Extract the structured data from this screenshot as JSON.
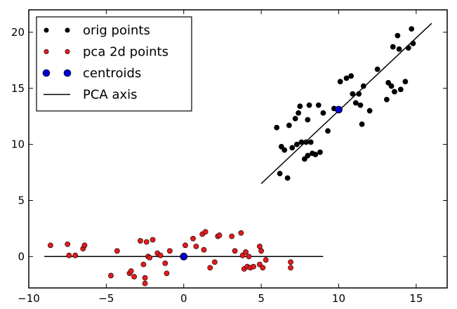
{
  "chart_data": {
    "type": "scatter",
    "title": "",
    "xlabel": "",
    "ylabel": "",
    "xlim": [
      -10,
      17
    ],
    "ylim": [
      -2.8,
      22
    ],
    "x_ticks": [
      -10,
      -5,
      0,
      5,
      10,
      15
    ],
    "y_ticks": [
      0,
      5,
      10,
      15,
      20
    ],
    "grid": false,
    "legend_position": "top-left",
    "series": [
      {
        "name": "orig points",
        "kind": "points",
        "color": "#000000",
        "points": [
          [
            6.0,
            11.5
          ],
          [
            6.3,
            9.8
          ],
          [
            6.5,
            9.5
          ],
          [
            6.7,
            7.0
          ],
          [
            6.8,
            11.7
          ],
          [
            6.2,
            7.4
          ],
          [
            7.0,
            9.7
          ],
          [
            7.2,
            12.3
          ],
          [
            7.3,
            10.0
          ],
          [
            7.4,
            12.8
          ],
          [
            7.5,
            13.4
          ],
          [
            7.6,
            10.2
          ],
          [
            7.8,
            8.7
          ],
          [
            7.9,
            10.2
          ],
          [
            8.0,
            12.2
          ],
          [
            8.0,
            9.0
          ],
          [
            8.1,
            13.5
          ],
          [
            8.2,
            10.2
          ],
          [
            8.3,
            9.2
          ],
          [
            8.5,
            9.1
          ],
          [
            8.7,
            13.5
          ],
          [
            8.8,
            9.3
          ],
          [
            9.0,
            12.8
          ],
          [
            9.3,
            11.2
          ],
          [
            9.7,
            13.2
          ],
          [
            10.1,
            15.6
          ],
          [
            10.5,
            15.9
          ],
          [
            10.8,
            16.1
          ],
          [
            10.9,
            14.5
          ],
          [
            11.1,
            13.7
          ],
          [
            11.3,
            14.5
          ],
          [
            11.5,
            11.8
          ],
          [
            11.6,
            15.2
          ],
          [
            11.4,
            13.5
          ],
          [
            12.0,
            13.0
          ],
          [
            12.5,
            16.7
          ],
          [
            13.1,
            14.0
          ],
          [
            13.2,
            15.5
          ],
          [
            13.5,
            18.7
          ],
          [
            13.6,
            14.7
          ],
          [
            13.8,
            19.7
          ],
          [
            14.0,
            14.9
          ],
          [
            14.3,
            15.6
          ],
          [
            14.5,
            18.6
          ],
          [
            14.7,
            20.3
          ],
          [
            14.8,
            19.0
          ],
          [
            13.4,
            15.2
          ],
          [
            13.9,
            18.5
          ]
        ]
      },
      {
        "name": "pca 2d points",
        "kind": "points",
        "color": "#e41a1c",
        "points": [
          [
            -8.6,
            1.0
          ],
          [
            -7.5,
            1.1
          ],
          [
            -7.4,
            0.1
          ],
          [
            -7.0,
            0.1
          ],
          [
            -6.5,
            0.7
          ],
          [
            -6.4,
            1.0
          ],
          [
            -4.7,
            -1.7
          ],
          [
            -4.3,
            0.5
          ],
          [
            -3.5,
            -1.5
          ],
          [
            -3.4,
            -1.3
          ],
          [
            -3.2,
            -1.8
          ],
          [
            -2.8,
            1.4
          ],
          [
            -2.6,
            -0.7
          ],
          [
            -2.5,
            -1.9
          ],
          [
            -2.5,
            -2.4
          ],
          [
            -2.4,
            1.3
          ],
          [
            -2.3,
            0.0
          ],
          [
            -2.2,
            -0.1
          ],
          [
            -2.0,
            1.5
          ],
          [
            -1.7,
            0.3
          ],
          [
            -1.5,
            0.1
          ],
          [
            -1.2,
            -0.6
          ],
          [
            -1.1,
            -1.5
          ],
          [
            -0.9,
            0.5
          ],
          [
            0.1,
            1.0
          ],
          [
            0.6,
            1.6
          ],
          [
            0.8,
            0.9
          ],
          [
            1.2,
            2.0
          ],
          [
            1.3,
            0.6
          ],
          [
            1.4,
            2.2
          ],
          [
            1.7,
            -1.0
          ],
          [
            2.0,
            -0.5
          ],
          [
            2.2,
            1.8
          ],
          [
            2.3,
            1.9
          ],
          [
            3.1,
            1.8
          ],
          [
            3.3,
            0.5
          ],
          [
            3.7,
            2.1
          ],
          [
            3.8,
            0.1
          ],
          [
            3.9,
            -1.1
          ],
          [
            4.0,
            0.4
          ],
          [
            4.1,
            -0.9
          ],
          [
            4.2,
            0.0
          ],
          [
            4.3,
            -1.0
          ],
          [
            4.5,
            -0.9
          ],
          [
            4.9,
            0.9
          ],
          [
            4.9,
            -0.7
          ],
          [
            5.0,
            0.5
          ],
          [
            5.1,
            -1.0
          ],
          [
            5.3,
            -0.3
          ],
          [
            6.9,
            -0.5
          ],
          [
            6.9,
            -1.0
          ]
        ]
      },
      {
        "name": "centroids",
        "kind": "points",
        "color": "#0000cc",
        "points": [
          [
            0.0,
            0.0
          ],
          [
            10.0,
            13.1
          ]
        ]
      },
      {
        "name": "PCA axis",
        "kind": "line",
        "color": "#000000",
        "segments": [
          [
            [
              -9.0,
              0.0
            ],
            [
              9.0,
              0.0
            ]
          ],
          [
            [
              5.0,
              6.5
            ],
            [
              16.0,
              20.8
            ]
          ]
        ]
      }
    ]
  }
}
